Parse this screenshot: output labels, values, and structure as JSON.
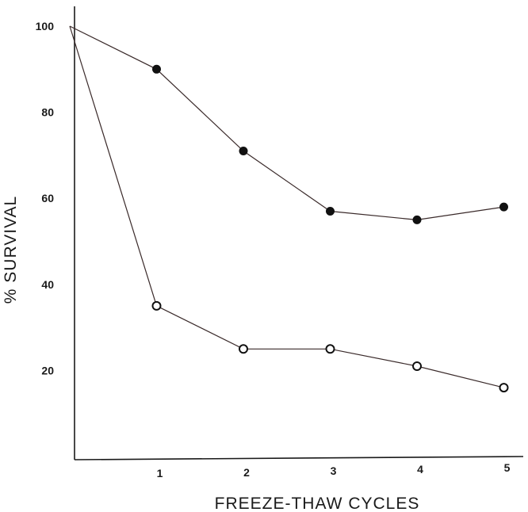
{
  "chart_data": {
    "type": "line",
    "title": "",
    "xlabel": "FREEZE-THAW CYCLES",
    "ylabel": "% SURVIVAL",
    "x_ticks": [
      "1",
      "2",
      "3",
      "4",
      "5"
    ],
    "y_ticks": [
      "20",
      "40",
      "60",
      "80",
      "100"
    ],
    "xlim": [
      0,
      5.2
    ],
    "ylim": [
      0,
      105
    ],
    "grid": false,
    "legend": "none",
    "series": [
      {
        "marker": "filled-circle",
        "color": "#111111",
        "points": [
          {
            "x": 0,
            "y": 100,
            "marker": false
          },
          {
            "x": 1,
            "y": 90
          },
          {
            "x": 2,
            "y": 71
          },
          {
            "x": 3,
            "y": 57
          },
          {
            "x": 4,
            "y": 55
          },
          {
            "x": 5,
            "y": 58
          }
        ]
      },
      {
        "marker": "open-circle",
        "color": "#111111",
        "points": [
          {
            "x": 0,
            "y": 100,
            "marker": false
          },
          {
            "x": 1,
            "y": 35
          },
          {
            "x": 2,
            "y": 25
          },
          {
            "x": 3,
            "y": 25
          },
          {
            "x": 4,
            "y": 21
          },
          {
            "x": 5,
            "y": 16
          }
        ]
      }
    ]
  }
}
